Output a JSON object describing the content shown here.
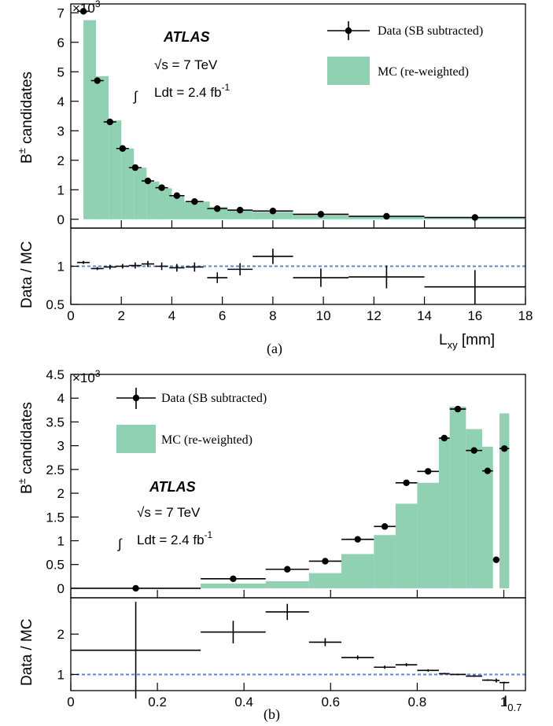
{
  "colors": {
    "mc_fill": "#8fd1b2",
    "data": "#000000",
    "ref_line": "#5a88d6"
  },
  "chart_data": [
    {
      "type": "bar",
      "caption": "(a)",
      "atlas_label": "ATLAS",
      "energy": "√s = 7 TeV",
      "lumi": "Ldt = 2.4 fb",
      "lumi_sup": "-1",
      "xlabel": "L",
      "xlabel_sub": "xy",
      "xlabel_unit": " [mm]",
      "ylabel": "B",
      "ylabel_sup": "±",
      "ylabel_rest": " candidates",
      "yexp_base": "×10",
      "yexp_sup": "3",
      "ratio_ylabel": "Data / MC",
      "legend_data": "Data (SB subtracted)",
      "legend_mc": "MC (re-weighted)",
      "xlim": [
        0,
        18
      ],
      "ylim": [
        -0.3,
        7.3
      ],
      "ratio_ylim": [
        0.5,
        1.5
      ],
      "xticks": [
        "0",
        "2",
        "4",
        "6",
        "8",
        "10",
        "12",
        "14",
        "16",
        "18"
      ],
      "yticks": [
        "0",
        "1",
        "2",
        "3",
        "4",
        "5",
        "6",
        "7"
      ],
      "ratio_yticks": [
        "0.5",
        "1"
      ],
      "mc_hist": [
        {
          "x0": 0,
          "x1": 0.5,
          "y": 0
        },
        {
          "x0": 0.5,
          "x1": 1,
          "y": 6.75
        },
        {
          "x0": 1,
          "x1": 1.5,
          "y": 4.85
        },
        {
          "x0": 1.5,
          "x1": 2,
          "y": 3.35
        },
        {
          "x0": 2,
          "x1": 2.5,
          "y": 2.4
        },
        {
          "x0": 2.5,
          "x1": 3,
          "y": 1.75
        },
        {
          "x0": 3,
          "x1": 3.5,
          "y": 1.28
        },
        {
          "x0": 3.5,
          "x1": 4,
          "y": 1.05
        },
        {
          "x0": 4,
          "x1": 4.5,
          "y": 0.82
        },
        {
          "x0": 4.5,
          "x1": 5.5,
          "y": 0.6
        },
        {
          "x0": 5.5,
          "x1": 6.2,
          "y": 0.42
        },
        {
          "x0": 6.2,
          "x1": 7.2,
          "y": 0.32
        },
        {
          "x0": 7.2,
          "x1": 8.8,
          "y": 0.25
        },
        {
          "x0": 8.8,
          "x1": 11,
          "y": 0.18
        },
        {
          "x0": 11,
          "x1": 14,
          "y": 0.12
        },
        {
          "x0": 14,
          "x1": 18,
          "y": 0.07
        }
      ],
      "data_points": [
        {
          "x": 0.5,
          "y": 7.05,
          "xerr": 0.25
        },
        {
          "x": 1.05,
          "y": 4.7,
          "xerr": 0.25
        },
        {
          "x": 1.55,
          "y": 3.3,
          "xerr": 0.25
        },
        {
          "x": 2.05,
          "y": 2.4,
          "xerr": 0.25
        },
        {
          "x": 2.55,
          "y": 1.75,
          "xerr": 0.25
        },
        {
          "x": 3.05,
          "y": 1.3,
          "xerr": 0.25
        },
        {
          "x": 3.6,
          "y": 1.07,
          "xerr": 0.25
        },
        {
          "x": 4.2,
          "y": 0.8,
          "xerr": 0.3
        },
        {
          "x": 4.9,
          "y": 0.6,
          "xerr": 0.35
        },
        {
          "x": 5.8,
          "y": 0.36,
          "xerr": 0.4
        },
        {
          "x": 6.7,
          "y": 0.31,
          "xerr": 0.5
        },
        {
          "x": 8.0,
          "y": 0.28,
          "xerr": 0.8
        },
        {
          "x": 9.9,
          "y": 0.17,
          "xerr": 1.1
        },
        {
          "x": 12.5,
          "y": 0.1,
          "xerr": 1.5
        },
        {
          "x": 16.0,
          "y": 0.06,
          "xerr": 2.0
        }
      ],
      "ratio_points": [
        {
          "x": 0.5,
          "y": 1.05,
          "xerr": 0.25,
          "yerr": 0.02
        },
        {
          "x": 1.05,
          "y": 0.97,
          "xerr": 0.25,
          "yerr": 0.02
        },
        {
          "x": 1.55,
          "y": 0.99,
          "xerr": 0.25,
          "yerr": 0.03
        },
        {
          "x": 2.05,
          "y": 1.0,
          "xerr": 0.25,
          "yerr": 0.03
        },
        {
          "x": 2.55,
          "y": 1.01,
          "xerr": 0.25,
          "yerr": 0.04
        },
        {
          "x": 3.05,
          "y": 1.03,
          "xerr": 0.25,
          "yerr": 0.04
        },
        {
          "x": 3.6,
          "y": 1.0,
          "xerr": 0.25,
          "yerr": 0.05
        },
        {
          "x": 4.2,
          "y": 0.98,
          "xerr": 0.3,
          "yerr": 0.05
        },
        {
          "x": 4.9,
          "y": 0.99,
          "xerr": 0.35,
          "yerr": 0.06
        },
        {
          "x": 5.8,
          "y": 0.85,
          "xerr": 0.4,
          "yerr": 0.07
        },
        {
          "x": 6.7,
          "y": 0.96,
          "xerr": 0.5,
          "yerr": 0.08
        },
        {
          "x": 8.0,
          "y": 1.13,
          "xerr": 0.8,
          "yerr": 0.1
        },
        {
          "x": 9.9,
          "y": 0.85,
          "xerr": 1.1,
          "yerr": 0.12
        },
        {
          "x": 12.5,
          "y": 0.86,
          "xerr": 1.5,
          "yerr": 0.15
        },
        {
          "x": 16.0,
          "y": 0.73,
          "xerr": 2.0,
          "yerr": 0.22
        }
      ]
    },
    {
      "type": "bar",
      "caption": "(b)",
      "atlas_label": "ATLAS",
      "energy": "√s = 7 TeV",
      "lumi": "Ldt = 2.4 fb",
      "lumi_sup": "-1",
      "xlabel": "I",
      "xlabel_sub": "0.7",
      "xlabel_unit": "",
      "ylabel": "B",
      "ylabel_sup": "±",
      "ylabel_rest": " candidates",
      "yexp_base": "×10",
      "yexp_sup": "3",
      "ratio_ylabel": "Data / MC",
      "legend_data": "Data (SB subtracted)",
      "legend_mc": "MC (re-weighted)",
      "xlim": [
        0,
        1.05
      ],
      "ylim": [
        -0.2,
        4.5
      ],
      "ratio_ylim": [
        0.6,
        2.9
      ],
      "xticks": [
        "0",
        "0.2",
        "0.4",
        "0.6",
        "0.8",
        "1"
      ],
      "yticks": [
        "0",
        "0.5",
        "1",
        "1.5",
        "2",
        "2.5",
        "3",
        "3.5",
        "4",
        "4.5"
      ],
      "ratio_yticks": [
        "1",
        "2"
      ],
      "mc_hist": [
        {
          "x0": 0,
          "x1": 0.3,
          "y": 0
        },
        {
          "x0": 0.3,
          "x1": 0.45,
          "y": 0.1
        },
        {
          "x0": 0.45,
          "x1": 0.55,
          "y": 0.15
        },
        {
          "x0": 0.55,
          "x1": 0.625,
          "y": 0.32
        },
        {
          "x0": 0.625,
          "x1": 0.7,
          "y": 0.72
        },
        {
          "x0": 0.7,
          "x1": 0.75,
          "y": 1.12
        },
        {
          "x0": 0.75,
          "x1": 0.8,
          "y": 1.78
        },
        {
          "x0": 0.8,
          "x1": 0.85,
          "y": 2.22
        },
        {
          "x0": 0.85,
          "x1": 0.875,
          "y": 3.15
        },
        {
          "x0": 0.875,
          "x1": 0.9125,
          "y": 3.82
        },
        {
          "x0": 0.9125,
          "x1": 0.95,
          "y": 3.35
        },
        {
          "x0": 0.95,
          "x1": 0.975,
          "y": 2.98
        },
        {
          "x0": 0.975,
          "x1": 0.99,
          "y": 0.0
        },
        {
          "x0": 0.99,
          "x1": 1.0125,
          "y": 3.68
        }
      ],
      "data_points": [
        {
          "x": 0.15,
          "y": 0.0,
          "xerr": 0.15
        },
        {
          "x": 0.375,
          "y": 0.2,
          "xerr": 0.075
        },
        {
          "x": 0.5,
          "y": 0.4,
          "xerr": 0.05
        },
        {
          "x": 0.5875,
          "y": 0.57,
          "xerr": 0.0375
        },
        {
          "x": 0.6625,
          "y": 1.03,
          "xerr": 0.0375
        },
        {
          "x": 0.725,
          "y": 1.3,
          "xerr": 0.025
        },
        {
          "x": 0.775,
          "y": 2.22,
          "xerr": 0.025
        },
        {
          "x": 0.825,
          "y": 2.46,
          "xerr": 0.025
        },
        {
          "x": 0.8625,
          "y": 3.16,
          "xerr": 0.0125
        },
        {
          "x": 0.8938,
          "y": 3.77,
          "xerr": 0.0188
        },
        {
          "x": 0.9313,
          "y": 2.9,
          "xerr": 0.0188
        },
        {
          "x": 0.9625,
          "y": 2.47,
          "xerr": 0.0125
        },
        {
          "x": 0.9825,
          "y": 0.6,
          "xerr": 0.0075
        },
        {
          "x": 1.0013,
          "y": 2.94,
          "xerr": 0.0113
        }
      ],
      "ratio_points": [
        {
          "x": 0.15,
          "y": 1.6,
          "xerr": 0.15,
          "yerr": 1.2
        },
        {
          "x": 0.375,
          "y": 2.05,
          "xerr": 0.075,
          "yerr": 0.28
        },
        {
          "x": 0.5,
          "y": 2.55,
          "xerr": 0.05,
          "yerr": 0.2
        },
        {
          "x": 0.5875,
          "y": 1.8,
          "xerr": 0.0375,
          "yerr": 0.1
        },
        {
          "x": 0.6625,
          "y": 1.42,
          "xerr": 0.0375,
          "yerr": 0.05
        },
        {
          "x": 0.725,
          "y": 1.18,
          "xerr": 0.025,
          "yerr": 0.04
        },
        {
          "x": 0.775,
          "y": 1.24,
          "xerr": 0.025,
          "yerr": 0.04
        },
        {
          "x": 0.825,
          "y": 1.1,
          "xerr": 0.025,
          "yerr": 0.03
        },
        {
          "x": 0.8625,
          "y": 1.02,
          "xerr": 0.0125,
          "yerr": 0.02
        },
        {
          "x": 0.8938,
          "y": 1.0,
          "xerr": 0.0188,
          "yerr": 0.02
        },
        {
          "x": 0.9313,
          "y": 0.96,
          "xerr": 0.0188,
          "yerr": 0.02
        },
        {
          "x": 0.9625,
          "y": 0.86,
          "xerr": 0.0125,
          "yerr": 0.02
        },
        {
          "x": 0.9825,
          "y": 0.85,
          "xerr": 0.0075,
          "yerr": 0.05
        },
        {
          "x": 1.0013,
          "y": 0.8,
          "xerr": 0.0113,
          "yerr": 0.02
        }
      ]
    }
  ]
}
